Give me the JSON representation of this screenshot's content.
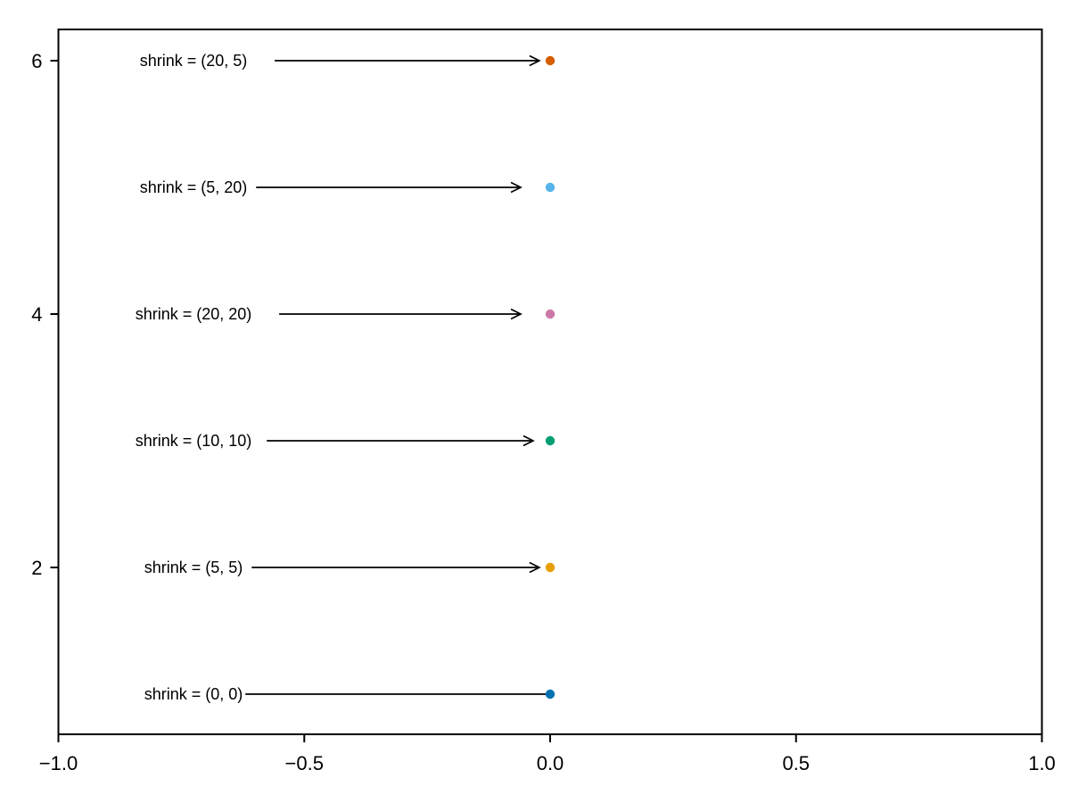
{
  "figure": {
    "background": "#ffffff"
  },
  "chart_data": {
    "type": "scatter",
    "title": "",
    "xlabel": "",
    "ylabel": "",
    "xlim": [
      -1.0,
      1.0
    ],
    "ylim": [
      0.7,
      6.3
    ],
    "grid": false,
    "legend": null,
    "axes_box": true,
    "axis_color": "#000000",
    "arrow_color": "#000000",
    "text_color": "#000000",
    "x_ticks": [
      {
        "value": -1.0,
        "label": "−1.0"
      },
      {
        "value": -0.5,
        "label": "−0.5"
      },
      {
        "value": 0.0,
        "label": "0.0"
      },
      {
        "value": 0.5,
        "label": "0.5"
      },
      {
        "value": 1.0,
        "label": "1.0"
      }
    ],
    "y_ticks": [
      {
        "value": 2,
        "label": "2"
      },
      {
        "value": 4,
        "label": "4"
      },
      {
        "value": 6,
        "label": "6"
      }
    ],
    "annotation_point_x": 0.0,
    "annotations": [
      {
        "y": 6,
        "label": "shrink = (20, 5)",
        "shrinkA": 20,
        "shrinkB": 5,
        "point_color": "#D55E00"
      },
      {
        "y": 5,
        "label": "shrink = (5, 20)",
        "shrinkA": 5,
        "shrinkB": 20,
        "point_color": "#56B4E9"
      },
      {
        "y": 4,
        "label": "shrink = (20, 20)",
        "shrinkA": 20,
        "shrinkB": 20,
        "point_color": "#CC79A7"
      },
      {
        "y": 3,
        "label": "shrink = (10, 10)",
        "shrinkA": 10,
        "shrinkB": 10,
        "point_color": "#029E73"
      },
      {
        "y": 2,
        "label": "shrink = (5, 5)",
        "shrinkA": 5,
        "shrinkB": 5,
        "point_color": "#E69F00"
      },
      {
        "y": 1,
        "label": "shrink = (0, 0)",
        "shrinkA": 0,
        "shrinkB": 0,
        "point_color": "#0173B2"
      }
    ],
    "points": [
      {
        "x": 0.0,
        "y": 1,
        "color": "#0173B2"
      },
      {
        "x": 0.0,
        "y": 2,
        "color": "#E69F00"
      },
      {
        "x": 0.0,
        "y": 3,
        "color": "#029E73"
      },
      {
        "x": 0.0,
        "y": 4,
        "color": "#CC79A7"
      },
      {
        "x": 0.0,
        "y": 5,
        "color": "#56B4E9"
      },
      {
        "x": 0.0,
        "y": 6,
        "color": "#D55E00"
      }
    ]
  }
}
